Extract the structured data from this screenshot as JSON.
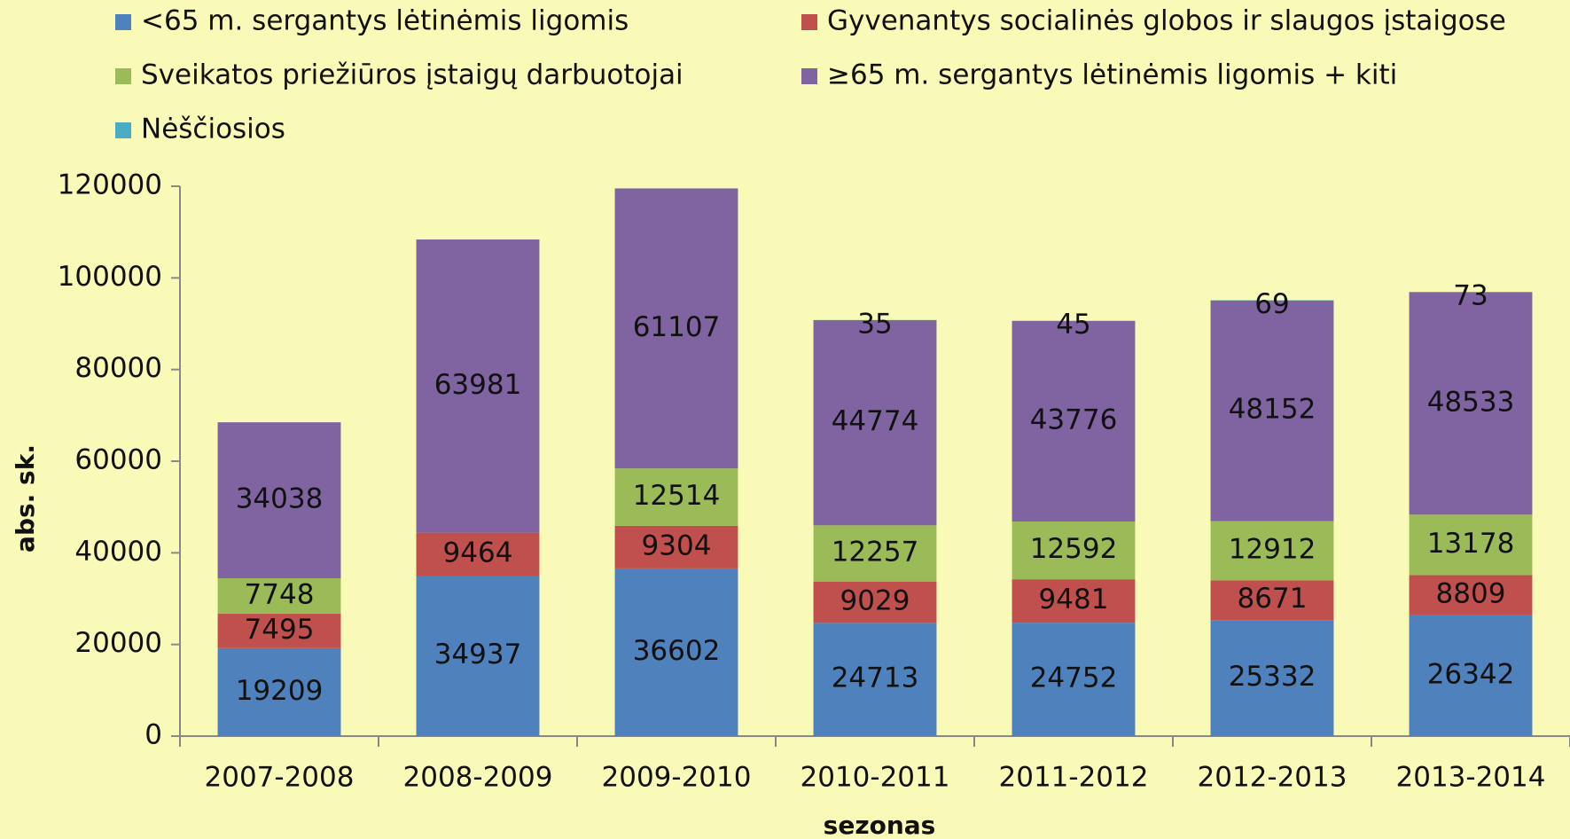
{
  "chart_data": {
    "type": "stacked_bar",
    "categories": [
      "2007-2008",
      "2008-2009",
      "2009-2010",
      "2010-2011",
      "2011-2012",
      "2012-2013",
      "2013-2014"
    ],
    "series": [
      {
        "name": "<65 m. sergantys lėtinėmis ligomis",
        "color": "#4f81bd",
        "values": [
          19209,
          34937,
          36602,
          24713,
          24752,
          25332,
          26342
        ]
      },
      {
        "name": "Gyvenantys socialinės globos ir slaugos įstaigose",
        "color": "#c0504d",
        "values": [
          7495,
          9464,
          9304,
          9029,
          9481,
          8671,
          8809
        ]
      },
      {
        "name": "Sveikatos priežiūros įstaigų darbuotojai",
        "color": "#9bbb59",
        "values": [
          7748,
          null,
          12514,
          12257,
          12592,
          12912,
          13178
        ]
      },
      {
        "name": "≥65 m. sergantys lėtinėmis ligomis + kiti",
        "color": "#8064a2",
        "values": [
          34038,
          63981,
          61107,
          44774,
          43776,
          48152,
          48533
        ]
      },
      {
        "name": "Nėščiosios",
        "color": "#4bacc6",
        "values": [
          null,
          null,
          null,
          35,
          45,
          69,
          73
        ]
      }
    ],
    "ylim": [
      0,
      120000
    ],
    "yticks": [
      0,
      20000,
      40000,
      60000,
      80000,
      100000,
      120000
    ],
    "ylabel": "abs. sk.",
    "xlabel": "sezonas",
    "legend": "top",
    "grid": false
  }
}
